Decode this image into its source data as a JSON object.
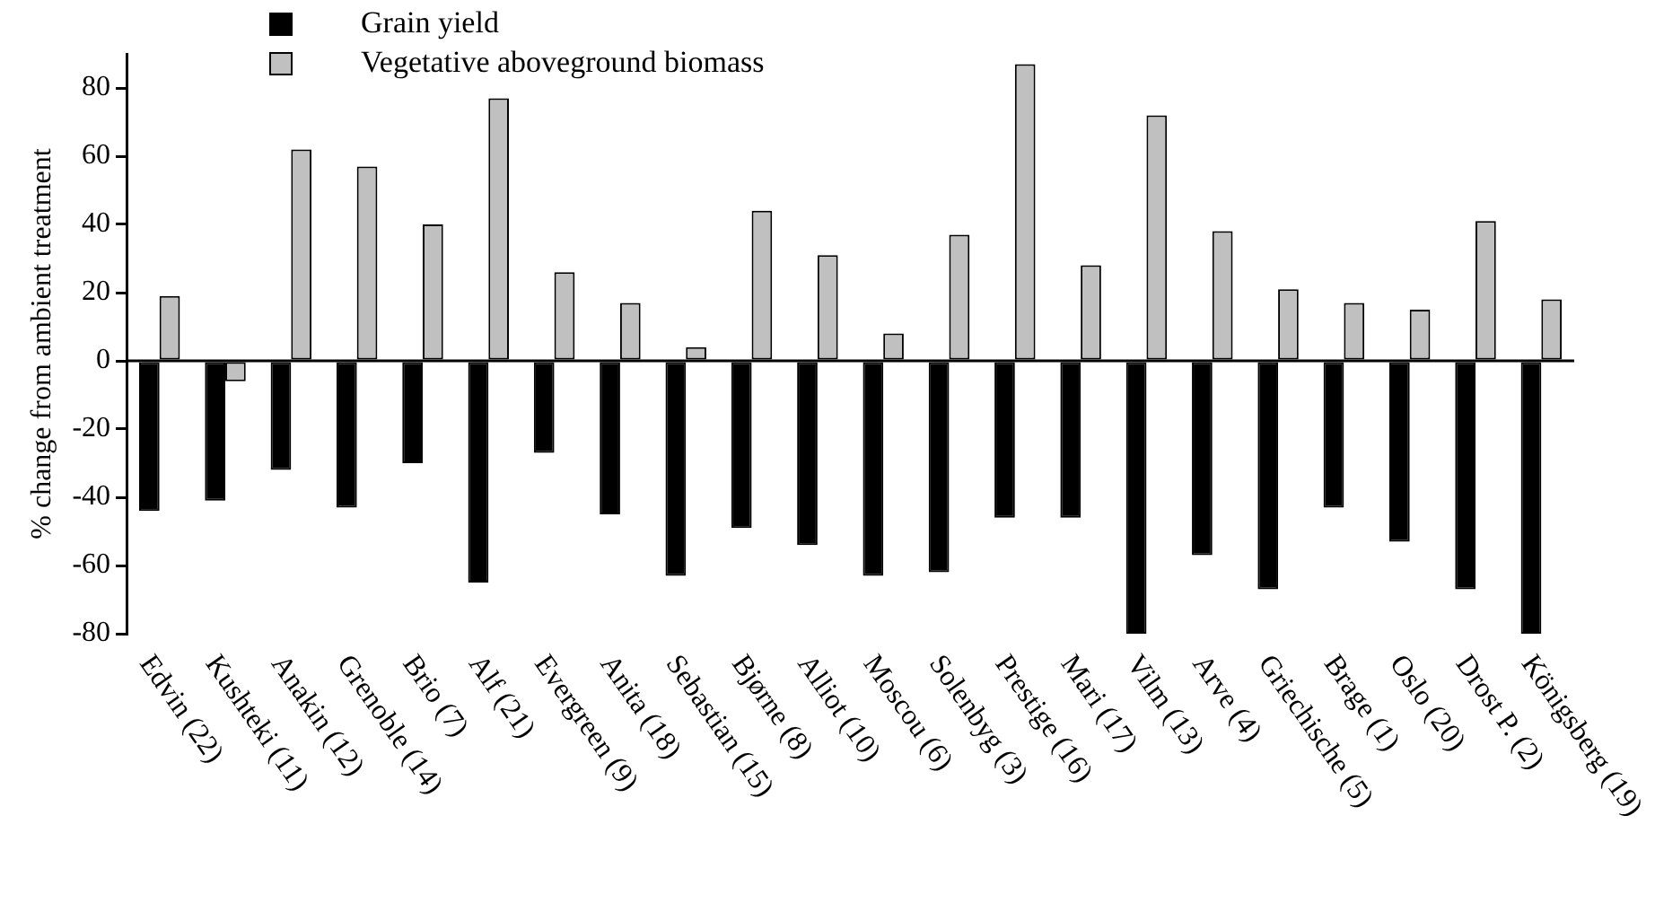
{
  "chart_data": {
    "type": "bar",
    "ylabel": "% change from ambient treatment",
    "categories": [
      "Edvin (22)",
      "Kushteki (11)",
      "Anakin (12)",
      "Grenoble (14)",
      "Brio (7)",
      "Alf (21)",
      "Evergreen (9)",
      "Anita (18)",
      "Sebastian (15)",
      "Bjørne (8)",
      "Alliot (10)",
      "Moscou (6)",
      "Solenbyg (3)",
      "Prestige (16)",
      "Mari (17)",
      "Vilm (13)",
      "Arve (4)",
      "Griechische (5)",
      "Brage (1)",
      "Oslo (20)",
      "Drost P. (2)",
      "Königsberg (19)"
    ],
    "series": [
      {
        "name": "Grain yield",
        "color": "#000000",
        "values": [
          -44,
          -41,
          -32,
          -43,
          -30,
          -65,
          -27,
          -45,
          -63,
          -49,
          -54,
          -63,
          -62,
          -46,
          -46,
          -80,
          -57,
          -67,
          -43,
          -53,
          -67,
          -80
        ]
      },
      {
        "name": "Vegetative aboveground biomass",
        "color": "#c0c0c0",
        "values": [
          19,
          -6,
          62,
          57,
          40,
          77,
          26,
          17,
          4,
          44,
          31,
          8,
          37,
          87,
          28,
          72,
          38,
          21,
          17,
          15,
          41,
          18
        ]
      }
    ],
    "ylim": [
      -80,
      90
    ],
    "yticks": [
      -80,
      -60,
      -40,
      -20,
      0,
      20,
      40,
      60,
      80
    ],
    "grid": false,
    "ref_lines": [
      {
        "axis": "y",
        "value": 0,
        "color": "#000000"
      }
    ],
    "legend": "top left"
  }
}
